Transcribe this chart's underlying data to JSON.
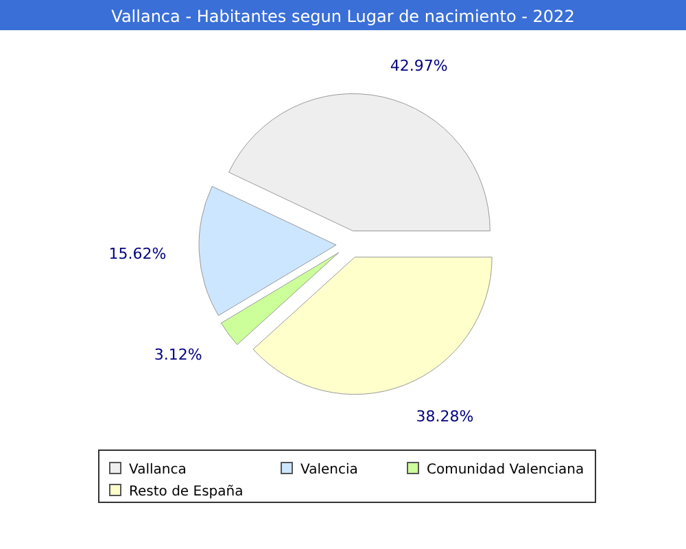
{
  "chart_data": {
    "type": "pie",
    "title": "Vallanca - Habitantes segun Lugar de nacimiento - 2022",
    "categories": [
      "Vallanca",
      "Valencia",
      "Comunidad Valenciana",
      "Resto de España"
    ],
    "values": [
      42.97,
      15.62,
      3.12,
      38.28
    ],
    "colors": [
      "#eeeeee",
      "#cce6ff",
      "#ccff99",
      "#ffffcc"
    ],
    "value_labels": [
      "42.97%",
      "15.62%",
      "3.12%",
      "38.28%"
    ],
    "legend": "bottom"
  }
}
